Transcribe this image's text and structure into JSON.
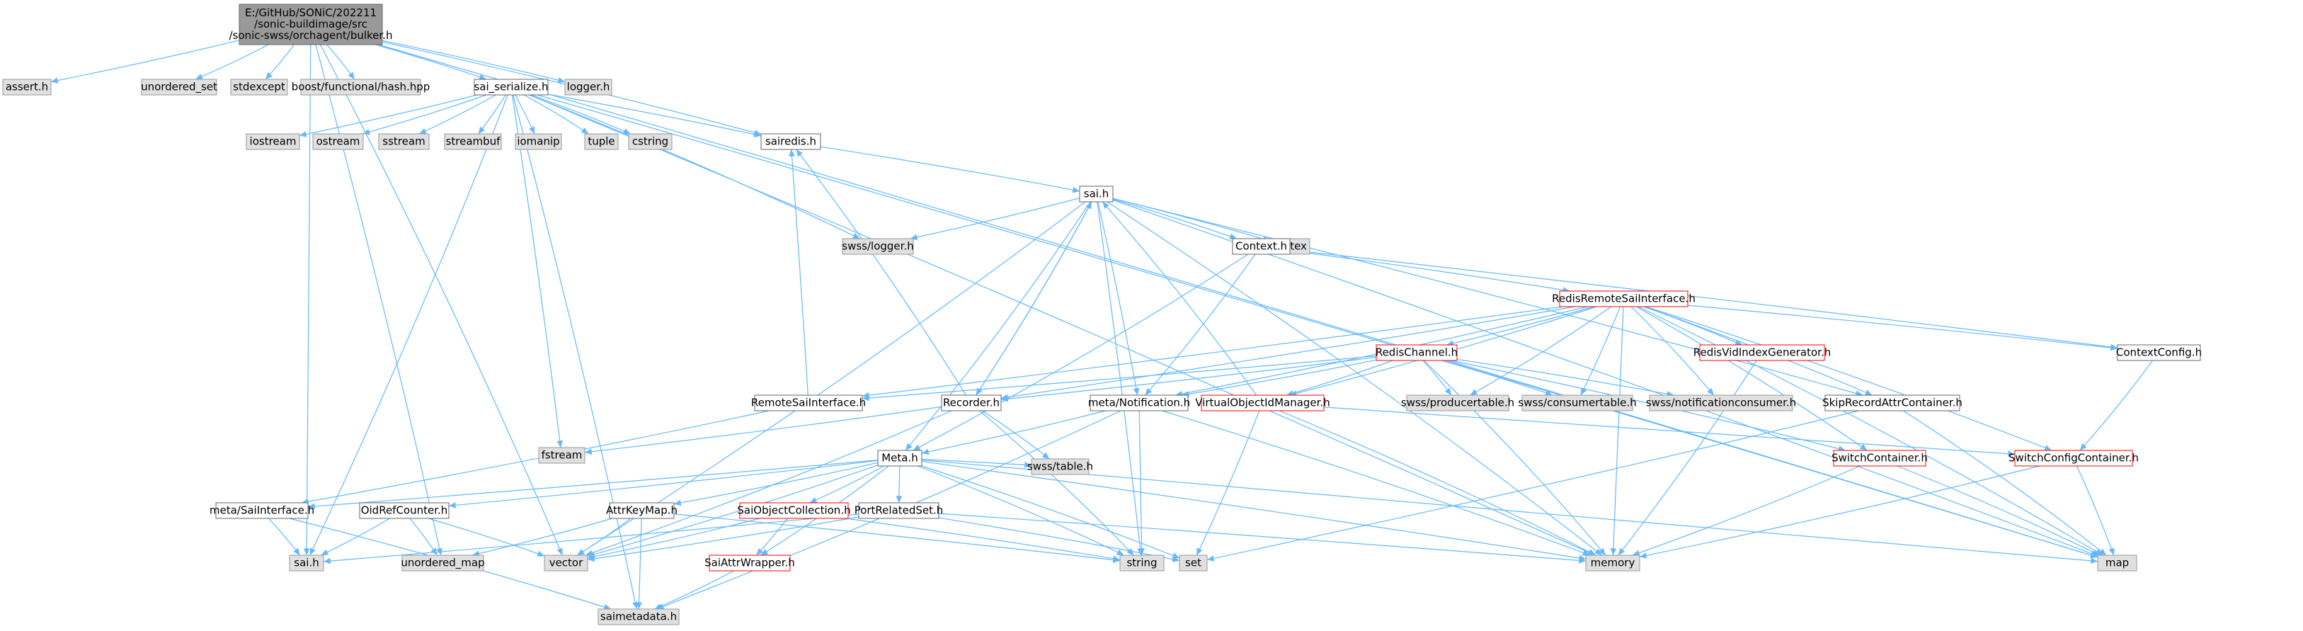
{
  "colors": {
    "edge": "#63B8FF",
    "sys_fill": "#E0E0E0",
    "sys_stroke": "#999999",
    "proj_fill": "#FFFFFF",
    "proj_stroke": "#666666",
    "trunc_stroke": "#FF0000",
    "root_fill": "#999999",
    "root_stroke": "#666666"
  },
  "nodes": [
    {
      "id": "root",
      "kind": "root",
      "lines": [
        "E:/GitHub/SONiC/202211",
        "/sonic-buildimage/src",
        "/sonic-swss/orchagent/bulker.h"
      ]
    },
    {
      "id": "assert",
      "kind": "sys",
      "lines": [
        "assert.h"
      ]
    },
    {
      "id": "unordered_set",
      "kind": "sys",
      "lines": [
        "unordered_set"
      ]
    },
    {
      "id": "stdexcept",
      "kind": "sys",
      "lines": [
        "stdexcept"
      ]
    },
    {
      "id": "boost_hash",
      "kind": "sys",
      "lines": [
        "boost/functional/hash.hpp"
      ]
    },
    {
      "id": "sai_serialize",
      "kind": "proj",
      "lines": [
        "sai_serialize.h"
      ]
    },
    {
      "id": "logger",
      "kind": "sys",
      "lines": [
        "logger.h"
      ]
    },
    {
      "id": "iostream",
      "kind": "sys",
      "lines": [
        "iostream"
      ]
    },
    {
      "id": "ostream",
      "kind": "sys",
      "lines": [
        "ostream"
      ]
    },
    {
      "id": "sstream",
      "kind": "sys",
      "lines": [
        "sstream"
      ]
    },
    {
      "id": "streambuf",
      "kind": "sys",
      "lines": [
        "streambuf"
      ]
    },
    {
      "id": "iomanip",
      "kind": "sys",
      "lines": [
        "iomanip"
      ]
    },
    {
      "id": "tuple",
      "kind": "sys",
      "lines": [
        "tuple"
      ]
    },
    {
      "id": "cstring",
      "kind": "sys",
      "lines": [
        "cstring"
      ]
    },
    {
      "id": "sairedis",
      "kind": "proj",
      "lines": [
        "sairedis.h"
      ]
    },
    {
      "id": "sai",
      "kind": "proj",
      "lines": [
        "sai.h"
      ]
    },
    {
      "id": "swss_logger",
      "kind": "sys",
      "lines": [
        "swss/logger.h"
      ]
    },
    {
      "id": "mutex",
      "kind": "sys",
      "lines": [
        "mutex"
      ]
    },
    {
      "id": "context",
      "kind": "proj",
      "lines": [
        "Context.h"
      ]
    },
    {
      "id": "rrsi",
      "kind": "trunc",
      "lines": [
        "RedisRemoteSaiInterface.h"
      ]
    },
    {
      "id": "contextconfig",
      "kind": "proj",
      "lines": [
        "ContextConfig.h"
      ]
    },
    {
      "id": "redischannel",
      "kind": "trunc",
      "lines": [
        "RedisChannel.h"
      ]
    },
    {
      "id": "redisvid",
      "kind": "trunc",
      "lines": [
        "RedisVidIndexGenerator.h"
      ]
    },
    {
      "id": "remotesai",
      "kind": "proj",
      "lines": [
        "RemoteSaiInterface.h"
      ]
    },
    {
      "id": "recorder",
      "kind": "proj",
      "lines": [
        "Recorder.h"
      ]
    },
    {
      "id": "metanotif",
      "kind": "proj",
      "lines": [
        "meta/Notification.h"
      ]
    },
    {
      "id": "vobjid",
      "kind": "trunc",
      "lines": [
        "VirtualObjectIdManager.h"
      ]
    },
    {
      "id": "producertable",
      "kind": "sys",
      "lines": [
        "swss/producertable.h"
      ]
    },
    {
      "id": "consumertable",
      "kind": "sys",
      "lines": [
        "swss/consumertable.h"
      ]
    },
    {
      "id": "notifconsumer",
      "kind": "sys",
      "lines": [
        "swss/notificationconsumer.h"
      ]
    },
    {
      "id": "skiprecord",
      "kind": "proj",
      "lines": [
        "SkipRecordAttrContainer.h"
      ]
    },
    {
      "id": "fstream",
      "kind": "sys",
      "lines": [
        "fstream"
      ]
    },
    {
      "id": "meta",
      "kind": "proj",
      "lines": [
        "Meta.h"
      ]
    },
    {
      "id": "swsstable",
      "kind": "sys",
      "lines": [
        "swss/table.h"
      ]
    },
    {
      "id": "switchcontainer",
      "kind": "trunc",
      "lines": [
        "SwitchContainer.h"
      ]
    },
    {
      "id": "switchconfigcontainer",
      "kind": "trunc",
      "lines": [
        "SwitchConfigContainer.h"
      ]
    },
    {
      "id": "metasai",
      "kind": "proj",
      "lines": [
        "meta/SaiInterface.h"
      ]
    },
    {
      "id": "oidref",
      "kind": "proj",
      "lines": [
        "OidRefCounter.h"
      ]
    },
    {
      "id": "attrkeymap",
      "kind": "proj",
      "lines": [
        "AttrKeyMap.h"
      ]
    },
    {
      "id": "saiobjcoll",
      "kind": "trunc",
      "lines": [
        "SaiObjectCollection.h"
      ]
    },
    {
      "id": "portrelated",
      "kind": "proj",
      "lines": [
        "PortRelatedSet.h"
      ]
    },
    {
      "id": "saih",
      "kind": "sys",
      "lines": [
        "sai.h"
      ]
    },
    {
      "id": "unordered_map",
      "kind": "sys",
      "lines": [
        "unordered_map"
      ]
    },
    {
      "id": "vector",
      "kind": "sys",
      "lines": [
        "vector"
      ]
    },
    {
      "id": "string",
      "kind": "sys",
      "lines": [
        "string"
      ]
    },
    {
      "id": "set",
      "kind": "sys",
      "lines": [
        "set"
      ]
    },
    {
      "id": "memory",
      "kind": "sys",
      "lines": [
        "memory"
      ]
    },
    {
      "id": "map",
      "kind": "sys",
      "lines": [
        "map"
      ]
    },
    {
      "id": "saiattrwrapper",
      "kind": "trunc",
      "lines": [
        "SaiAttrWrapper.h"
      ]
    },
    {
      "id": "saimetadata",
      "kind": "sys",
      "lines": [
        "saimetadata.h"
      ]
    }
  ],
  "edges": [
    [
      "root",
      "assert"
    ],
    [
      "root",
      "unordered_set"
    ],
    [
      "root",
      "stdexcept"
    ],
    [
      "root",
      "boost_hash"
    ],
    [
      "root",
      "sai_serialize"
    ],
    [
      "root",
      "logger"
    ],
    [
      "root",
      "sairedis"
    ],
    [
      "root",
      "saih"
    ],
    [
      "root",
      "unordered_map"
    ],
    [
      "root",
      "vector"
    ],
    [
      "root",
      "map"
    ],
    [
      "sai_serialize",
      "iostream"
    ],
    [
      "sai_serialize",
      "ostream"
    ],
    [
      "sai_serialize",
      "sstream"
    ],
    [
      "sai_serialize",
      "streambuf"
    ],
    [
      "sai_serialize",
      "iomanip"
    ],
    [
      "sai_serialize",
      "tuple"
    ],
    [
      "sai_serialize",
      "cstring"
    ],
    [
      "sai_serialize",
      "sairedis"
    ],
    [
      "sai_serialize",
      "swss_logger"
    ],
    [
      "sai_serialize",
      "fstream"
    ],
    [
      "sai_serialize",
      "saih"
    ],
    [
      "sai_serialize",
      "saimetadata"
    ],
    [
      "sai_serialize",
      "memory"
    ],
    [
      "sai_serialize",
      "map"
    ],
    [
      "sairedis",
      "sai"
    ],
    [
      "sai",
      "swss_logger"
    ],
    [
      "sai",
      "mutex"
    ],
    [
      "sai",
      "context"
    ],
    [
      "sai",
      "recorder"
    ],
    [
      "sai",
      "metanotif"
    ],
    [
      "sai",
      "meta"
    ],
    [
      "sai",
      "vector"
    ],
    [
      "sai",
      "string"
    ],
    [
      "sai",
      "map"
    ],
    [
      "sai",
      "memory"
    ],
    [
      "sai",
      "skiprecord"
    ],
    [
      "context",
      "rrsi"
    ],
    [
      "context",
      "contextconfig"
    ],
    [
      "context",
      "meta"
    ],
    [
      "context",
      "metanotif"
    ],
    [
      "rrsi",
      "contextconfig"
    ],
    [
      "rrsi",
      "redischannel"
    ],
    [
      "rrsi",
      "redisvid"
    ],
    [
      "rrsi",
      "remotesai"
    ],
    [
      "rrsi",
      "recorder"
    ],
    [
      "rrsi",
      "metanotif"
    ],
    [
      "rrsi",
      "vobjid"
    ],
    [
      "rrsi",
      "producertable"
    ],
    [
      "rrsi",
      "consumertable"
    ],
    [
      "rrsi",
      "notifconsumer"
    ],
    [
      "rrsi",
      "skiprecord"
    ],
    [
      "rrsi",
      "switchcontainer"
    ],
    [
      "rrsi",
      "switchconfigcontainer"
    ],
    [
      "rrsi",
      "memory"
    ],
    [
      "rrsi",
      "map"
    ],
    [
      "contextconfig",
      "switchconfigcontainer"
    ],
    [
      "redischannel",
      "remotesai"
    ],
    [
      "redischannel",
      "recorder"
    ],
    [
      "redischannel",
      "metanotif"
    ],
    [
      "redischannel",
      "vobjid"
    ],
    [
      "redischannel",
      "producertable"
    ],
    [
      "redischannel",
      "consumertable"
    ],
    [
      "redischannel",
      "notifconsumer"
    ],
    [
      "redischannel",
      "memory"
    ],
    [
      "redischannel",
      "switchcontainer"
    ],
    [
      "redisvid",
      "memory"
    ],
    [
      "remotesai",
      "sairedis"
    ],
    [
      "remotesai",
      "metasai"
    ],
    [
      "recorder",
      "sai"
    ],
    [
      "recorder",
      "sairedis"
    ],
    [
      "recorder",
      "fstream"
    ],
    [
      "recorder",
      "string"
    ],
    [
      "recorder",
      "swsstable"
    ],
    [
      "recorder",
      "vector"
    ],
    [
      "metanotif",
      "string"
    ],
    [
      "metanotif",
      "meta"
    ],
    [
      "metanotif",
      "saimetadata"
    ],
    [
      "metanotif",
      "memory"
    ],
    [
      "vobjid",
      "sai"
    ],
    [
      "vobjid",
      "set"
    ],
    [
      "vobjid",
      "memory"
    ],
    [
      "vobjid",
      "switchconfigcontainer"
    ],
    [
      "skiprecord",
      "set"
    ],
    [
      "skiprecord",
      "map"
    ],
    [
      "meta",
      "metasai"
    ],
    [
      "meta",
      "oidref"
    ],
    [
      "meta",
      "attrkeymap"
    ],
    [
      "meta",
      "saiobjcoll"
    ],
    [
      "meta",
      "portrelated"
    ],
    [
      "meta",
      "swsstable"
    ],
    [
      "meta",
      "saiattrwrapper"
    ],
    [
      "meta",
      "vector"
    ],
    [
      "meta",
      "string"
    ],
    [
      "meta",
      "set"
    ],
    [
      "meta",
      "memory"
    ],
    [
      "meta",
      "map"
    ],
    [
      "switchcontainer",
      "memory"
    ],
    [
      "switchcontainer",
      "map"
    ],
    [
      "switchconfigcontainer",
      "memory"
    ],
    [
      "switchconfigcontainer",
      "map"
    ],
    [
      "metasai",
      "saih"
    ],
    [
      "metasai",
      "saimetadata"
    ],
    [
      "oidref",
      "saih"
    ],
    [
      "oidref",
      "unordered_map"
    ],
    [
      "oidref",
      "vector"
    ],
    [
      "attrkeymap",
      "saimetadata"
    ],
    [
      "attrkeymap",
      "vector"
    ],
    [
      "attrkeymap",
      "string"
    ],
    [
      "attrkeymap",
      "unordered_map"
    ],
    [
      "saiobjcoll",
      "saiattrwrapper"
    ],
    [
      "saiobjcoll",
      "string"
    ],
    [
      "saiobjcoll",
      "vector"
    ],
    [
      "portrelated",
      "saih"
    ],
    [
      "portrelated",
      "vector"
    ],
    [
      "portrelated",
      "set"
    ],
    [
      "portrelated",
      "memory"
    ],
    [
      "saiattrwrapper",
      "saimetadata"
    ]
  ]
}
